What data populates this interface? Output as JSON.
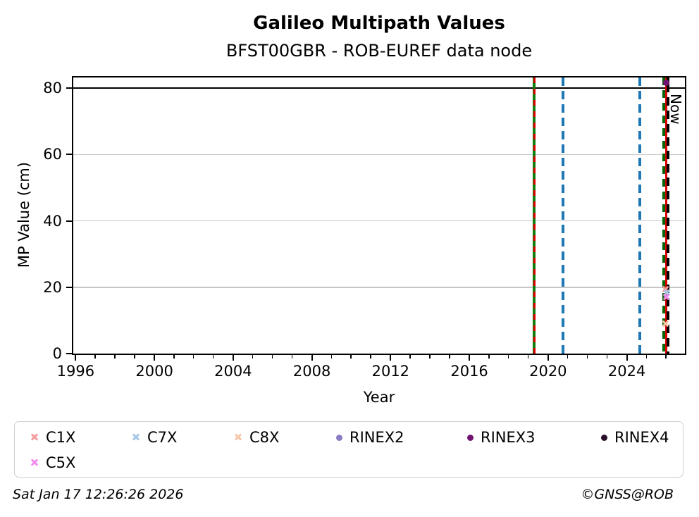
{
  "header": {
    "title": "Galileo Multipath Values",
    "subtitle": "BFST00GBR - ROB-EUREF data node"
  },
  "footer": {
    "timestamp": "Sat Jan 17 12:26:26 2026",
    "credit": "©GNSS@ROB"
  },
  "chart_data": {
    "type": "scatter",
    "title": "Galileo Multipath Values",
    "subtitle": "BFST00GBR - ROB-EUREF data node",
    "xlabel": "Year",
    "ylabel": "MP Value (cm)",
    "xlim": [
      1995.88,
      2026.95
    ],
    "ylim": [
      0,
      83.2
    ],
    "x_major_ticks": [
      1996,
      2000,
      2004,
      2008,
      2012,
      2016,
      2020,
      2024
    ],
    "x_minor_step_years": 1,
    "y_ticks": [
      0,
      20,
      40,
      60,
      80
    ],
    "grid": {
      "values": [
        20,
        40,
        60
      ],
      "color": "#c6c6c6",
      "orientation": "horizontal"
    },
    "threshold_line": {
      "y": 80,
      "color": "#000000"
    },
    "now_label": {
      "text": "Now",
      "x": 2026.0
    },
    "vlines": [
      {
        "name": "event-2019-green-solid",
        "x": 2019.29,
        "color": "#0f7d0f",
        "style": "solid",
        "width": 4.5
      },
      {
        "name": "event-2019-red-dashed",
        "x": 2019.29,
        "color": "#dd0000",
        "style": "dashed",
        "width": 3,
        "dash": 8,
        "gap": 8
      },
      {
        "name": "event-2020-blue-dashed",
        "x": 2020.76,
        "color": "#1f77b4",
        "style": "dashed",
        "width": 4,
        "dash": 12,
        "gap": 7
      },
      {
        "name": "event-2024-blue-dashed",
        "x": 2024.66,
        "color": "#1f77b4",
        "style": "dashed",
        "width": 4,
        "dash": 12,
        "gap": 7
      },
      {
        "name": "event-2025-green-dashed",
        "x": 2025.86,
        "color": "#076607",
        "style": "dashed",
        "width": 4,
        "dash": 11,
        "gap": 7
      },
      {
        "name": "now-line",
        "x": 2026.0,
        "color": "#e10000",
        "style": "solid",
        "width": 3.5
      },
      {
        "name": "event-2026-black-dashed",
        "x": 2026.1,
        "color": "#000000",
        "style": "dashed",
        "width": 4,
        "dash": 12,
        "gap": 7,
        "phase": 9
      }
    ],
    "series": [
      {
        "label": "C1X",
        "marker": "x",
        "color": "#f29c9c",
        "points": [
          [
            2025.95,
            19.5
          ]
        ]
      },
      {
        "label": "C7X",
        "marker": "x",
        "color": "#a5c8e6",
        "points": [
          [
            2026.04,
            18.3
          ]
        ]
      },
      {
        "label": "C8X",
        "marker": "x",
        "color": "#f6c6a8",
        "points": [
          [
            2025.95,
            9.1
          ]
        ]
      },
      {
        "label": "RINEX2",
        "marker": "dot",
        "color": "#8b7cc4",
        "points": []
      },
      {
        "label": "RINEX3",
        "marker": "dot",
        "color": "#721472",
        "points": [
          [
            2026.0,
            81.7
          ]
        ]
      },
      {
        "label": "RINEX4",
        "marker": "dot",
        "color": "#2a0f2a",
        "points": []
      },
      {
        "label": "C5X",
        "marker": "x",
        "color": "#ef8def",
        "points": [
          [
            2026.0,
            17.1
          ]
        ]
      }
    ],
    "legend_position": "bottom"
  }
}
